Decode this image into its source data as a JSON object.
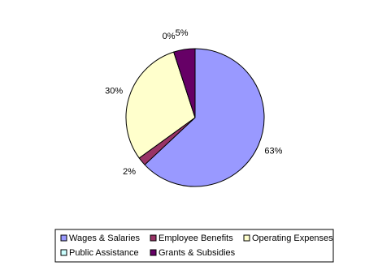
{
  "chart_data": {
    "type": "pie",
    "categories": [
      "Wages & Salaries",
      "Employee Benefits",
      "Operating Expenses",
      "Public Assistance",
      "Grants & Subsidies"
    ],
    "values": [
      63,
      2,
      30,
      0,
      5
    ],
    "value_labels": [
      "63%",
      "2%",
      "30%",
      "0%",
      "5%"
    ],
    "colors": [
      "#9999ff",
      "#993366",
      "#ffffcc",
      "#ccffff",
      "#660066"
    ],
    "legend": "bottom"
  }
}
